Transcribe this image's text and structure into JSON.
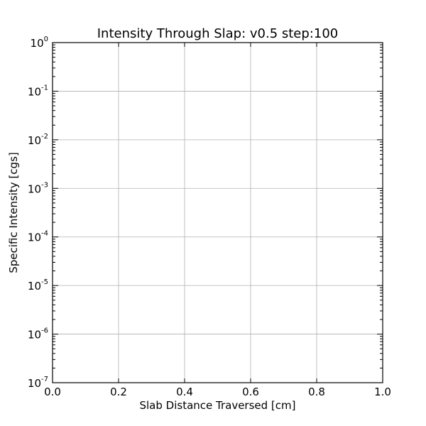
{
  "chart_data": {
    "type": "line",
    "title": "Intensity Through Slap: v0.5 step:100",
    "xlabel": "Slab Distance Traversed [cm]",
    "ylabel": "Specific Intensity [cgs]",
    "xlim": [
      0.0,
      1.0
    ],
    "ylim": [
      1e-07,
      1
    ],
    "yscale": "log",
    "x_ticks": [
      0.0,
      0.2,
      0.4,
      0.6,
      0.8,
      1.0
    ],
    "x_tick_labels": [
      "0.0",
      "0.2",
      "0.4",
      "0.6",
      "0.8",
      "1.0"
    ],
    "y_ticks": [
      1e-07,
      1e-06,
      1e-05,
      0.0001,
      0.001,
      0.01,
      0.1,
      1
    ],
    "y_tick_labels": [
      {
        "base": "10",
        "exp": "-7"
      },
      {
        "base": "10",
        "exp": "-6"
      },
      {
        "base": "10",
        "exp": "-5"
      },
      {
        "base": "10",
        "exp": "-4"
      },
      {
        "base": "10",
        "exp": "-3"
      },
      {
        "base": "10",
        "exp": "-2"
      },
      {
        "base": "10",
        "exp": "-1"
      },
      {
        "base": "10",
        "exp": "0"
      }
    ],
    "grid": true,
    "series": []
  }
}
